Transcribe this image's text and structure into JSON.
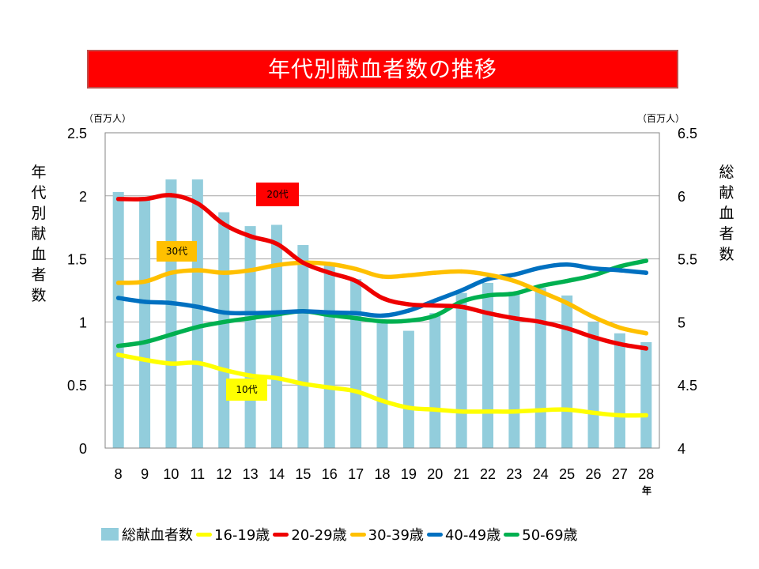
{
  "title": "年代別献血者数の推移",
  "left_unit": "（百万人）",
  "right_unit": "（百万人）",
  "left_axis_title": "年代別献血者数",
  "right_axis_title": "総献血者数",
  "x_unit": "年",
  "tags": {
    "teens": "10代",
    "twenties": "20代",
    "thirties": "30代"
  },
  "colors": {
    "banner": "#ff0000",
    "total_bar": "#92cddc",
    "s16_19": "#ffff00",
    "s20_29": "#ee0000",
    "s30_39": "#ffc000",
    "s40_49": "#0070c0",
    "s50_69": "#00b050",
    "tag_teens": "#ffff00",
    "tag_twenties": "#ff0000",
    "tag_thirties": "#ffc000"
  },
  "legend": [
    {
      "label": "総献血者数",
      "kind": "bar",
      "color": "#92cddc"
    },
    {
      "label": "16-19歳",
      "kind": "line",
      "color": "#ffff00"
    },
    {
      "label": "20-29歳",
      "kind": "line",
      "color": "#ee0000"
    },
    {
      "label": "30-39歳",
      "kind": "line",
      "color": "#ffc000"
    },
    {
      "label": "40-49歳",
      "kind": "line",
      "color": "#0070c0"
    },
    {
      "label": "50-69歳",
      "kind": "line",
      "color": "#00b050"
    }
  ],
  "chart_data": {
    "type": "bar+line",
    "title": "年代別献血者数の推移",
    "xlabel": "年",
    "ylabel": "年代別献血者数（百万人）",
    "y2label": "総献血者数（百万人）",
    "categories": [
      "8",
      "9",
      "10",
      "11",
      "12",
      "13",
      "14",
      "15",
      "16",
      "17",
      "18",
      "19",
      "20",
      "21",
      "22",
      "23",
      "24",
      "25",
      "26",
      "27",
      "28"
    ],
    "ylim": [
      0,
      2.5
    ],
    "yticks": [
      "0",
      "0.5",
      "1",
      "1.5",
      "2",
      "2.5"
    ],
    "y2lim": [
      4,
      6.5
    ],
    "y2ticks": [
      "4",
      "4.5",
      "5",
      "5.5",
      "6",
      "6.5"
    ],
    "grid": true,
    "legend_position": "bottom",
    "bars": {
      "name": "総献血者数",
      "axis": "right",
      "values": [
        6.03,
        5.99,
        6.13,
        6.13,
        5.87,
        5.76,
        5.77,
        5.61,
        5.46,
        5.34,
        4.99,
        4.93,
        5.07,
        5.23,
        5.31,
        5.24,
        5.27,
        5.21,
        5.0,
        4.91,
        4.84
      ]
    },
    "series": [
      {
        "name": "16-19歳",
        "axis": "left",
        "values": [
          0.74,
          0.7,
          0.67,
          0.675,
          0.62,
          0.575,
          0.555,
          0.51,
          0.48,
          0.45,
          0.375,
          0.32,
          0.305,
          0.29,
          0.29,
          0.29,
          0.3,
          0.305,
          0.28,
          0.26,
          0.26
        ]
      },
      {
        "name": "20-29歳",
        "axis": "left",
        "values": [
          1.975,
          1.975,
          2.005,
          1.94,
          1.775,
          1.68,
          1.62,
          1.47,
          1.39,
          1.325,
          1.19,
          1.14,
          1.13,
          1.12,
          1.07,
          1.03,
          1.0,
          0.95,
          0.88,
          0.825,
          0.79
        ]
      },
      {
        "name": "30-39歳",
        "axis": "left",
        "values": [
          1.31,
          1.32,
          1.39,
          1.41,
          1.39,
          1.41,
          1.45,
          1.47,
          1.46,
          1.42,
          1.36,
          1.37,
          1.39,
          1.4,
          1.375,
          1.325,
          1.24,
          1.15,
          1.04,
          0.955,
          0.91
        ]
      },
      {
        "name": "40-49歳",
        "axis": "left",
        "values": [
          1.19,
          1.16,
          1.15,
          1.12,
          1.075,
          1.07,
          1.075,
          1.085,
          1.075,
          1.07,
          1.05,
          1.09,
          1.17,
          1.25,
          1.34,
          1.375,
          1.43,
          1.455,
          1.425,
          1.41,
          1.39
        ]
      },
      {
        "name": "50-69歳",
        "axis": "left",
        "values": [
          0.81,
          0.84,
          0.9,
          0.96,
          1.0,
          1.03,
          1.06,
          1.085,
          1.055,
          1.03,
          1.005,
          1.01,
          1.05,
          1.16,
          1.21,
          1.225,
          1.285,
          1.325,
          1.37,
          1.44,
          1.485
        ]
      }
    ]
  }
}
